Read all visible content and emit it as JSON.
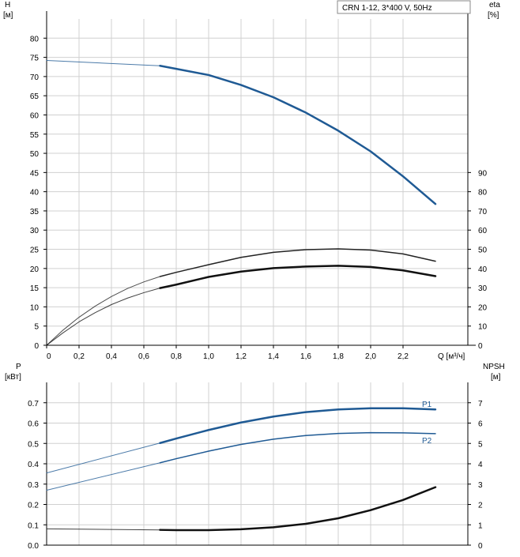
{
  "chart_data": [
    {
      "type": "line",
      "legend": "CRN 1-12, 3*400 V, 50Hz",
      "y_left_label": [
        "H",
        "[м]"
      ],
      "y_right_label": [
        "eta",
        "[%]"
      ],
      "x_axis_label": "Q [м³/ч]",
      "xlim": [
        0,
        2.6
      ],
      "ylim": [
        0,
        85
      ],
      "x_ticks": [
        "0",
        "0,2",
        "0,4",
        "0,6",
        "0,8",
        "1,0",
        "1,2",
        "1,4",
        "1,6",
        "1,8",
        "2,0",
        "2,2"
      ],
      "y_ticks": [
        "0",
        "5",
        "10",
        "15",
        "20",
        "25",
        "30",
        "35",
        "40",
        "45",
        "50",
        "55",
        "60",
        "65",
        "70",
        "75",
        "80"
      ],
      "y_right_ticks": [
        "0",
        "10",
        "20",
        "30",
        "40",
        "50",
        "60",
        "70",
        "80",
        "90"
      ],
      "y_right_lim": [
        0,
        170
      ],
      "series": [
        {
          "color": "#1f5a94",
          "x": [
            0,
            0.7,
            0.8,
            1.0,
            1.2,
            1.4,
            1.6,
            1.8,
            2.0,
            2.2,
            2.4
          ],
          "y": [
            74.2,
            72.8,
            72.0,
            70.4,
            67.8,
            64.6,
            60.6,
            55.9,
            50.5,
            44.0,
            36.8
          ],
          "thin_until": 0.7
        },
        {
          "color": "#222222",
          "x": [
            0,
            0.1,
            0.2,
            0.3,
            0.4,
            0.5,
            0.6,
            0.7,
            0.8,
            1.0,
            1.2,
            1.4,
            1.6,
            1.8,
            2.0,
            2.2,
            2.4
          ],
          "y": [
            0,
            3.9,
            7.3,
            10.2,
            12.7,
            14.8,
            16.5,
            17.9,
            19.0,
            21.0,
            22.9,
            24.2,
            24.9,
            25.1,
            24.8,
            23.8,
            21.9
          ],
          "thin_until": 0.7
        },
        {
          "color": "#111111",
          "x": [
            0,
            0.1,
            0.2,
            0.3,
            0.4,
            0.5,
            0.6,
            0.7,
            0.8,
            1.0,
            1.2,
            1.4,
            1.6,
            1.8,
            2.0,
            2.2,
            2.4
          ],
          "y": [
            0,
            3.2,
            6.1,
            8.5,
            10.6,
            12.3,
            13.7,
            14.9,
            15.8,
            17.8,
            19.2,
            20.1,
            20.5,
            20.7,
            20.4,
            19.5,
            18.0
          ],
          "thin_until": 0.7
        }
      ]
    },
    {
      "type": "line",
      "y_left_label": [
        "P",
        "[кВт]"
      ],
      "y_right_label": [
        "NPSH",
        "[м]"
      ],
      "xlim": [
        0,
        2.6
      ],
      "ylim": [
        0,
        0.8
      ],
      "y_ticks": [
        "0.0",
        "0.1",
        "0.2",
        "0.3",
        "0.4",
        "0.5",
        "0.6",
        "0.7"
      ],
      "y_right_ticks": [
        "0",
        "1",
        "2",
        "3",
        "4",
        "5",
        "6",
        "7"
      ],
      "y_right_lim": [
        0,
        8
      ],
      "series": [
        {
          "name": "P1",
          "color": "#1f5a94",
          "x": [
            0,
            0.7,
            0.8,
            1.0,
            1.2,
            1.4,
            1.6,
            1.8,
            2.0,
            2.2,
            2.4
          ],
          "y": [
            0.355,
            0.502,
            0.524,
            0.566,
            0.603,
            0.632,
            0.654,
            0.667,
            0.673,
            0.673,
            0.667
          ],
          "thin_until": 0.7
        },
        {
          "name": "P2",
          "color": "#1f5a94",
          "x": [
            0,
            0.7,
            0.8,
            1.0,
            1.2,
            1.4,
            1.6,
            1.8,
            2.0,
            2.2,
            2.4
          ],
          "y": [
            0.27,
            0.405,
            0.425,
            0.462,
            0.495,
            0.521,
            0.539,
            0.549,
            0.553,
            0.552,
            0.548
          ],
          "thin_until": 0.7
        },
        {
          "color": "#111111",
          "axis": "right",
          "x": [
            0,
            0.7,
            0.8,
            1.0,
            1.2,
            1.4,
            1.6,
            1.8,
            2.0,
            2.2,
            2.4
          ],
          "y": [
            0.8,
            0.75,
            0.74,
            0.74,
            0.78,
            0.88,
            1.05,
            1.32,
            1.72,
            2.22,
            2.85
          ],
          "thin_until": 0.7
        }
      ]
    }
  ]
}
